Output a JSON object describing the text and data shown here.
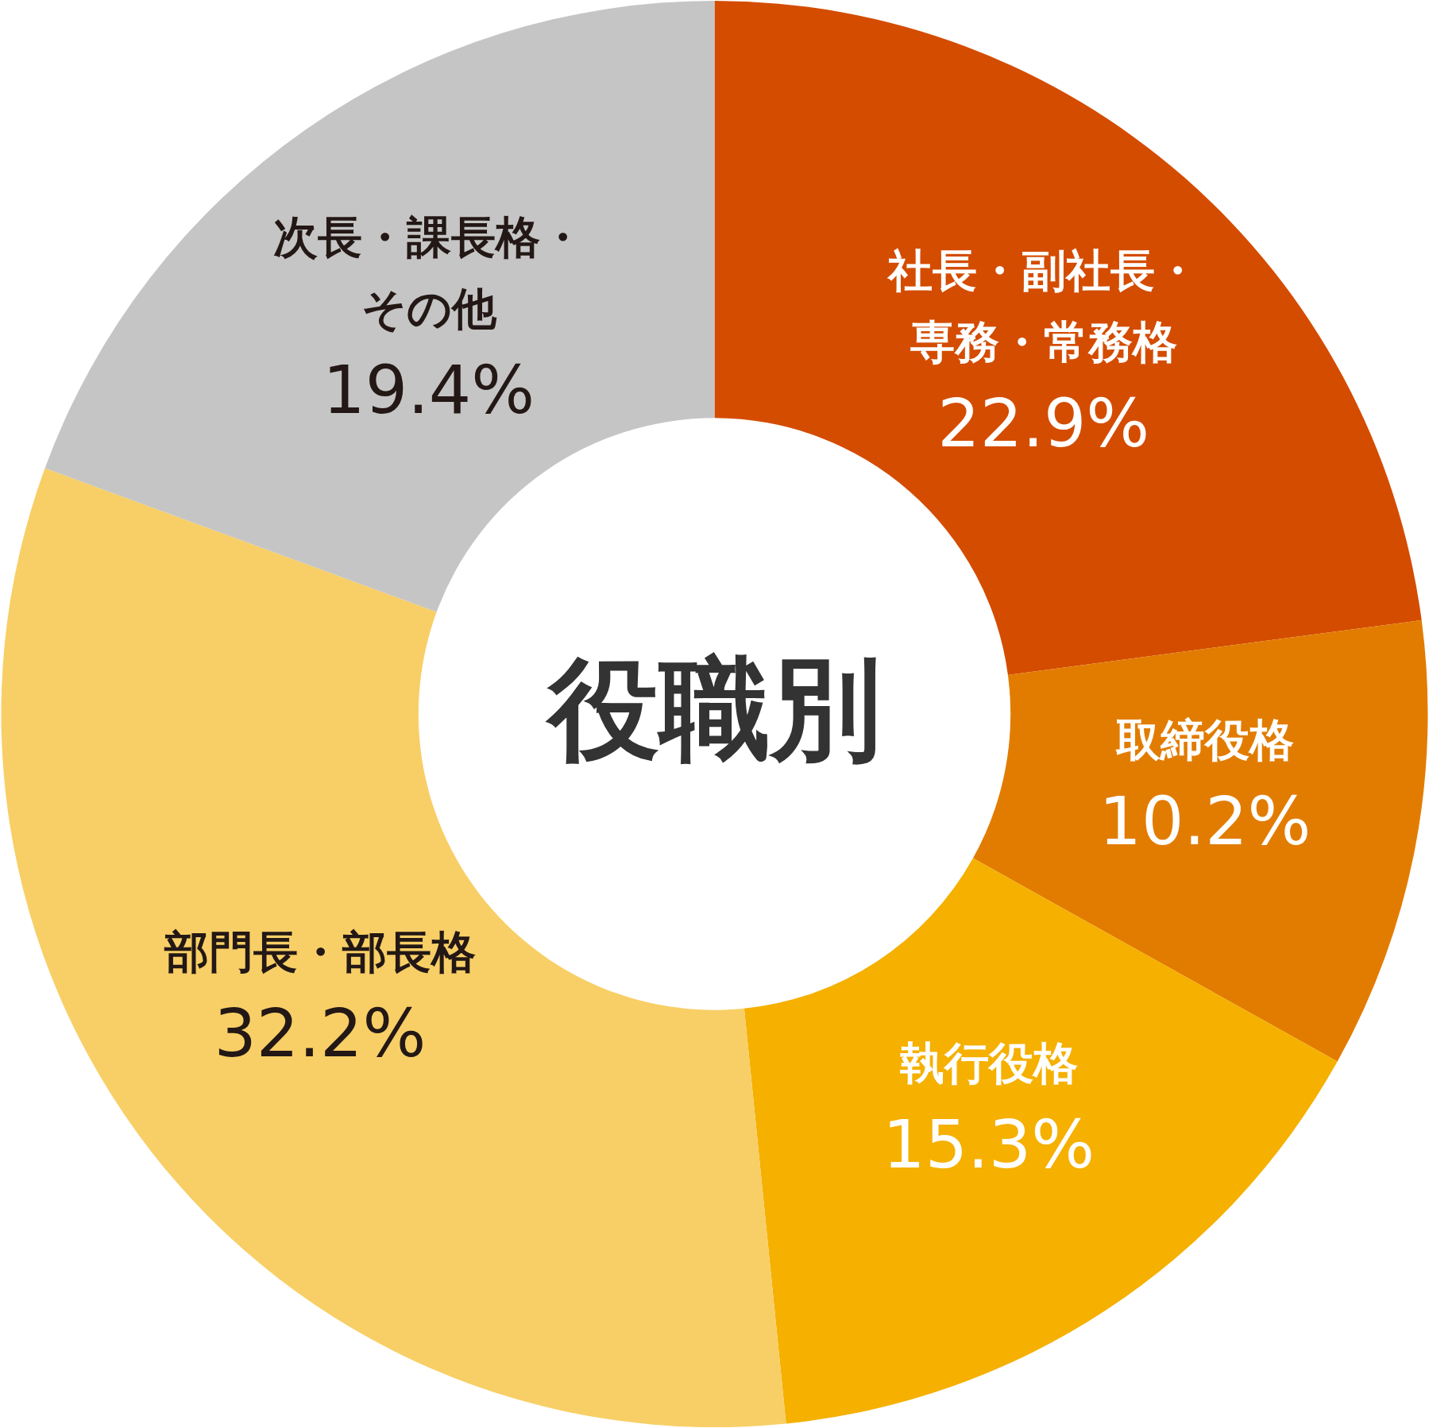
{
  "chart_data": {
    "type": "donut",
    "title": "役職別",
    "categories": [
      "社長・副社長・専務・常務格",
      "取締役格",
      "執行役格",
      "部門長・部長格",
      "次長・課長格・その他"
    ],
    "values": [
      22.9,
      10.2,
      15.3,
      32.2,
      19.4
    ],
    "value_labels": [
      "22.9%",
      "10.2%",
      "15.3%",
      "32.2%",
      "19.4%"
    ],
    "colors": [
      "#d44c00",
      "#e27c00",
      "#f5b000",
      "#f8cf66",
      "#c5c5c5"
    ]
  }
}
